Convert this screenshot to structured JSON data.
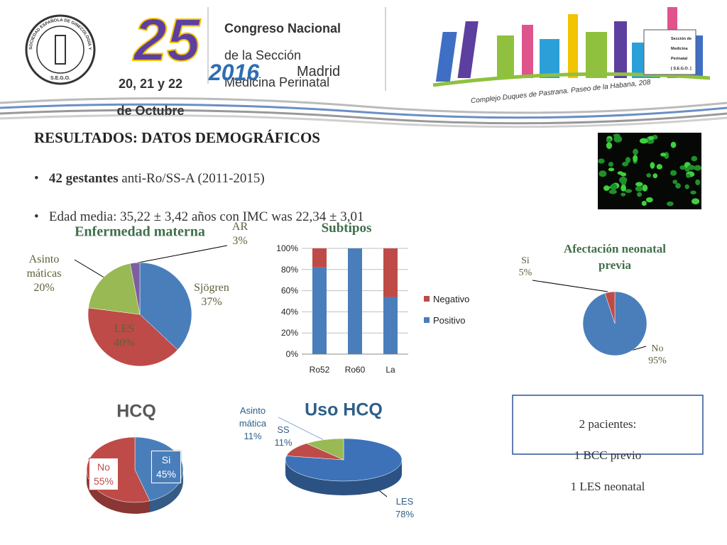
{
  "header": {
    "logo_ring": "SOCIEDAD ESPAÑOLA DE GINECOLOGÍA Y OBSTETRICIA",
    "logo_initials": "S.E.G.O.",
    "edition": "25",
    "title_lines": [
      "Congreso Nacional",
      "de la Sección",
      "Medicina Perinatal"
    ],
    "dates": [
      "20, 21 y 22",
      "de Octubre"
    ],
    "year": "2016",
    "city": "Madrid",
    "venue": "Complejo Duques de Pastrana. Paseo de la Habana, 208",
    "section_logo": [
      "Sección de",
      "Medicina",
      "Perinatal",
      "[ S.E.G.O. ]"
    ]
  },
  "results": {
    "title": "RESULTADOS: DATOS DEMOGRÁFICOS",
    "bullets": [
      {
        "bold": "42 gestantes",
        "text": " anti-Ro/SS-A (2011-2015)"
      },
      {
        "text": "Edad media: 35,22 ± 3,42 años con IMC was 22,34 ± 3,01"
      }
    ]
  },
  "note": [
    "2 pacientes:",
    "1 BCC previo",
    "1 LES neonatal"
  ],
  "chart_data": [
    {
      "type": "pie",
      "title": "Enfermedad materna",
      "categories": [
        "Sjögren",
        "LES",
        "Asinto\nmáticas",
        "AR"
      ],
      "values": [
        37,
        40,
        20,
        3
      ],
      "value_labels": [
        "37%",
        "40%",
        "20%",
        "3%"
      ],
      "colors": [
        "#4a7ebb",
        "#be4b48",
        "#98b954",
        "#7d5fa0"
      ]
    },
    {
      "type": "bar",
      "stacked": true,
      "title": "Subtipos",
      "categories": [
        "Ro52",
        "Ro60",
        "La"
      ],
      "series": [
        {
          "name": "Positivo",
          "color": "#4a7ebb",
          "values": [
            82,
            100,
            54
          ]
        },
        {
          "name": "Negativo",
          "color": "#be4b48",
          "values": [
            18,
            0,
            46
          ]
        }
      ],
      "ylim": [
        0,
        100
      ],
      "yticks": [
        {
          "value": 0,
          "label": "0%"
        },
        {
          "value": 20,
          "label": "20%"
        },
        {
          "value": 40,
          "label": "40%"
        },
        {
          "value": 60,
          "label": "60%"
        },
        {
          "value": 80,
          "label": "80%"
        },
        {
          "value": 100,
          "label": "100%"
        }
      ],
      "grid": true,
      "legend": "right"
    },
    {
      "type": "pie",
      "title": "Afectación neonatal\nprevia",
      "categories": [
        "No",
        "Si"
      ],
      "values": [
        95,
        5
      ],
      "value_labels": [
        "95%",
        "5%"
      ],
      "colors": [
        "#4a7ebb",
        "#be4b48"
      ]
    },
    {
      "type": "pie3d",
      "title": "HCQ",
      "categories": [
        "Si",
        "No"
      ],
      "values": [
        45,
        55
      ],
      "value_labels": [
        "45%",
        "55%"
      ],
      "colors": [
        "#4a7ebb",
        "#be4b48"
      ]
    },
    {
      "type": "pie3d",
      "title": "Uso HCQ",
      "categories": [
        "LES",
        "SS",
        "Asinto\nmática"
      ],
      "values": [
        78,
        11,
        11
      ],
      "value_labels": [
        "78%",
        "11%",
        "11%"
      ],
      "colors": [
        "#3d72b8",
        "#be4b48",
        "#98b954"
      ]
    }
  ]
}
